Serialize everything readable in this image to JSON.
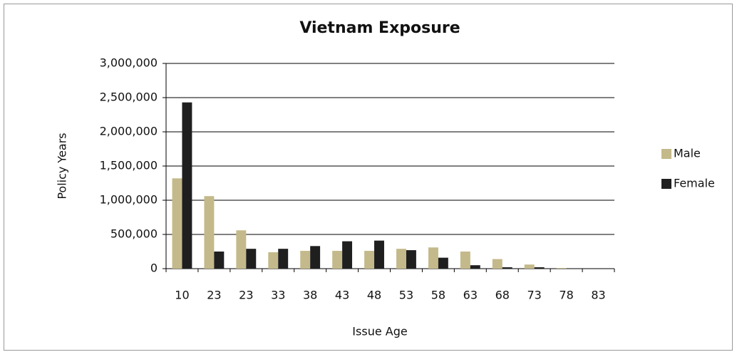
{
  "chart_data": {
    "type": "bar",
    "title": "Vietnam Exposure",
    "x_label": "Issue Age",
    "y_label": "Policy Years",
    "categories": [
      "10",
      "23",
      "23",
      "33",
      "38",
      "43",
      "48",
      "53",
      "58",
      "63",
      "68",
      "73",
      "78",
      "83"
    ],
    "series": [
      {
        "name": "Male",
        "color": "#c4b98a",
        "values": [
          1320000,
          1060000,
          560000,
          240000,
          260000,
          260000,
          260000,
          290000,
          310000,
          250000,
          140000,
          60000,
          10000,
          0
        ]
      },
      {
        "name": "Female",
        "color": "#1f1f1f",
        "values": [
          2430000,
          250000,
          290000,
          290000,
          330000,
          400000,
          410000,
          270000,
          160000,
          50000,
          20000,
          20000,
          0,
          0
        ]
      }
    ],
    "ylim": [
      0,
      3000000
    ],
    "yticks": [
      0,
      {
        "value": 500000,
        "label": "500,000"
      },
      {
        "value": 1000000,
        "label": "1,000,000"
      },
      {
        "value": 1500000,
        "label": "1,500,000"
      },
      {
        "value": 2000000,
        "label": "2,000,000"
      },
      {
        "value": 2500000,
        "label": "2,500,000"
      },
      {
        "value": 3000000,
        "label": "3,000,000"
      }
    ],
    "grid": true,
    "legend": "right"
  }
}
